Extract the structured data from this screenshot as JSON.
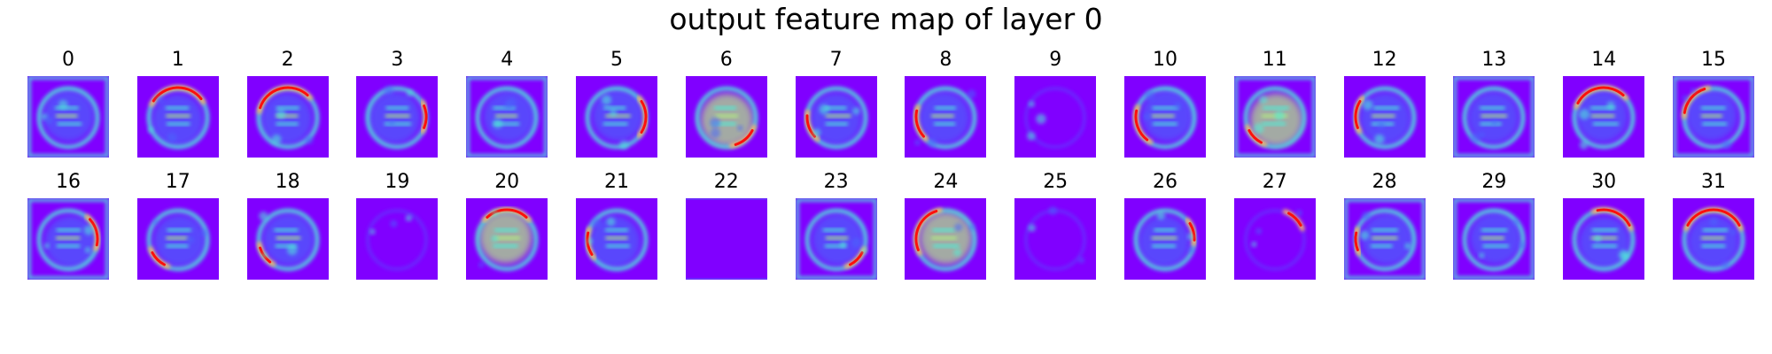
{
  "figure": {
    "title": "output feature map of layer 0"
  },
  "chart_data": {
    "type": "heatmap",
    "title": "output feature map of layer 0",
    "colormap": "rainbow",
    "colormap_stops": [
      "#8000ff",
      "#4a66fb",
      "#4df0d8",
      "#b3f27e",
      "#ffb160",
      "#ff0000"
    ],
    "axes_visible": false,
    "rows": 2,
    "cols": 16,
    "panels": [
      {
        "label": "0"
      },
      {
        "label": "1"
      },
      {
        "label": "2"
      },
      {
        "label": "3"
      },
      {
        "label": "4"
      },
      {
        "label": "5"
      },
      {
        "label": "6"
      },
      {
        "label": "7"
      },
      {
        "label": "8"
      },
      {
        "label": "9"
      },
      {
        "label": "10"
      },
      {
        "label": "11"
      },
      {
        "label": "12"
      },
      {
        "label": "13"
      },
      {
        "label": "14"
      },
      {
        "label": "15"
      },
      {
        "label": "16"
      },
      {
        "label": "17"
      },
      {
        "label": "18"
      },
      {
        "label": "19"
      },
      {
        "label": "20"
      },
      {
        "label": "21"
      },
      {
        "label": "22"
      },
      {
        "label": "23"
      },
      {
        "label": "24"
      },
      {
        "label": "25"
      },
      {
        "label": "26"
      },
      {
        "label": "27"
      },
      {
        "label": "28"
      },
      {
        "label": "29"
      },
      {
        "label": "30"
      },
      {
        "label": "31"
      }
    ]
  }
}
